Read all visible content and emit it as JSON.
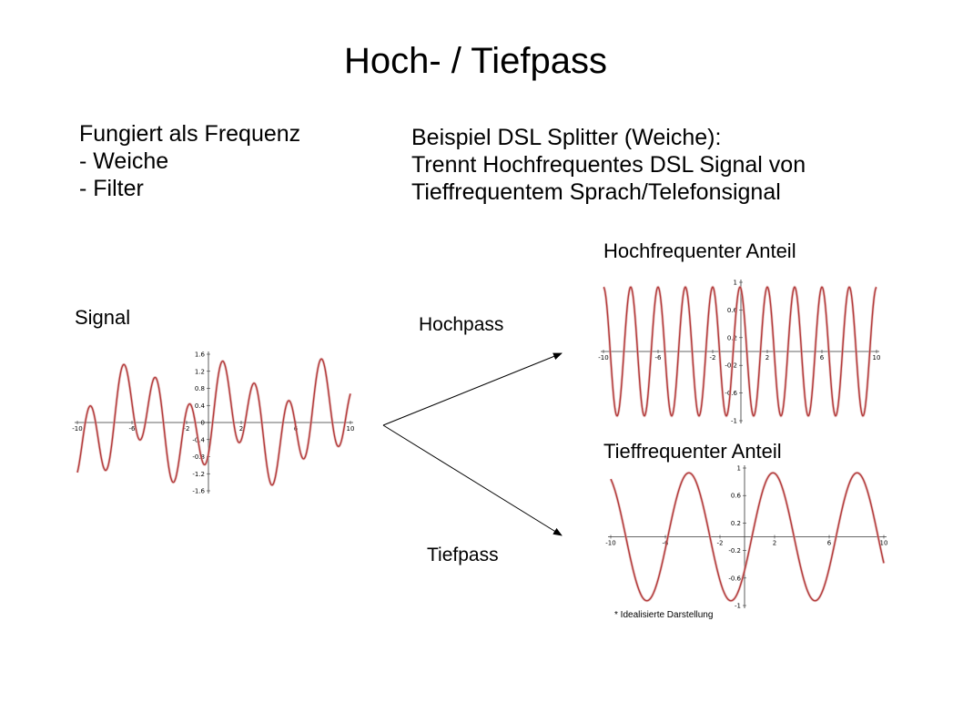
{
  "title": "Hoch- / Tiefpass",
  "bullets": [
    "Fungiert als Frequenz",
    "- Weiche",
    "- Filter"
  ],
  "example": [
    "Beispiel DSL Splitter (Weiche):",
    "Trennt Hochfrequentes DSL Signal von",
    "Tieffrequentem Sprach/Telefonsignal"
  ],
  "labels": {
    "signal": "Signal",
    "highpass": "Hochpass",
    "lowpass": "Tiefpass",
    "high_component": "Hochfrequenter Anteil",
    "low_component": "Tieffrequenter Anteil"
  },
  "footnote": "* Idealisierte Darstellung",
  "colors": {
    "curve": "#b33a3a",
    "axis": "#333333",
    "text": "#000000"
  },
  "chart_data": [
    {
      "type": "line",
      "name": "signal",
      "x_ticks": [
        -10,
        -6,
        -2,
        2,
        6,
        10
      ],
      "y_ticks": [
        1.6,
        1.2,
        0.8,
        0.4,
        0,
        -0.4,
        -0.8,
        -1.2,
        -1.6
      ],
      "xlim": [
        -10,
        10
      ],
      "ylim": [
        -1.6,
        1.6
      ]
    },
    {
      "type": "line",
      "name": "high-frequency component",
      "x_ticks": [
        -10,
        -6,
        -2,
        2,
        6,
        10
      ],
      "y_ticks": [
        1,
        0.6,
        0.2,
        -0.2,
        -0.6,
        -1
      ],
      "xlim": [
        -10,
        10
      ],
      "ylim": [
        -1,
        1
      ]
    },
    {
      "type": "line",
      "name": "low-frequency component",
      "x_ticks": [
        -10,
        -6,
        -2,
        2,
        6,
        10
      ],
      "y_ticks": [
        1,
        0.6,
        0.2,
        -0.2,
        -0.6,
        -1
      ],
      "xlim": [
        -10,
        10
      ],
      "ylim": [
        -1,
        1
      ]
    }
  ]
}
